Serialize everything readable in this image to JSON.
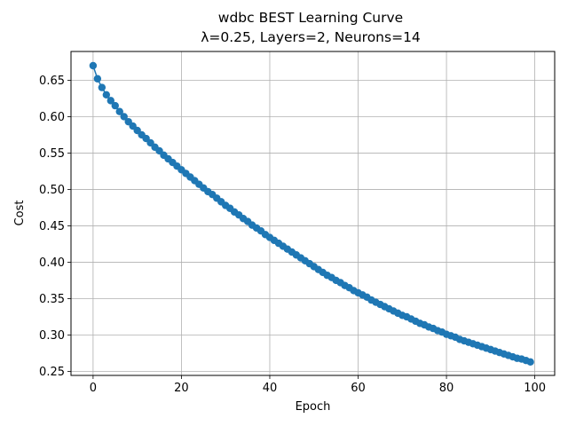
{
  "chart_data": {
    "type": "line",
    "title": "wdbc BEST Learning Curve",
    "subtitle": "λ=0.25, Layers=2, Neurons=14",
    "xlabel": "Epoch",
    "ylabel": "Cost",
    "xlim": [
      -5,
      104.5
    ],
    "ylim": [
      0.2445,
      0.6895
    ],
    "xticks": [
      0,
      20,
      40,
      60,
      80,
      100
    ],
    "xtick_labels": [
      "0",
      "20",
      "40",
      "60",
      "80",
      "100"
    ],
    "yticks": [
      0.25,
      0.3,
      0.35,
      0.4,
      0.45,
      0.5,
      0.55,
      0.6,
      0.65
    ],
    "ytick_labels": [
      "0.25",
      "0.30",
      "0.35",
      "0.40",
      "0.45",
      "0.50",
      "0.55",
      "0.60",
      "0.65"
    ],
    "grid": true,
    "marker": "circle",
    "colors": {
      "series": "#1f77b4",
      "grid": "#b0b0b0",
      "axes": "#000000"
    },
    "series": [
      {
        "x": [
          0,
          1,
          2,
          3,
          4,
          5,
          6,
          7,
          8,
          9,
          10,
          11,
          12,
          13,
          14,
          15,
          16,
          17,
          18,
          19,
          20,
          21,
          22,
          23,
          24,
          25,
          26,
          27,
          28,
          29,
          30,
          31,
          32,
          33,
          34,
          35,
          36,
          37,
          38,
          39,
          40,
          41,
          42,
          43,
          44,
          45,
          46,
          47,
          48,
          49,
          50,
          51,
          52,
          53,
          54,
          55,
          56,
          57,
          58,
          59,
          60,
          61,
          62,
          63,
          64,
          65,
          66,
          67,
          68,
          69,
          70,
          71,
          72,
          73,
          74,
          75,
          76,
          77,
          78,
          79,
          80,
          81,
          82,
          83,
          84,
          85,
          86,
          87,
          88,
          89,
          90,
          91,
          92,
          93,
          94,
          95,
          96,
          97,
          98,
          99
        ],
        "values": [
          0.67,
          0.652,
          0.64,
          0.63,
          0.622,
          0.615,
          0.607,
          0.6,
          0.593,
          0.587,
          0.581,
          0.575,
          0.57,
          0.564,
          0.558,
          0.553,
          0.547,
          0.542,
          0.537,
          0.532,
          0.527,
          0.522,
          0.517,
          0.512,
          0.507,
          0.502,
          0.497,
          0.493,
          0.488,
          0.483,
          0.478,
          0.474,
          0.469,
          0.465,
          0.46,
          0.456,
          0.451,
          0.447,
          0.443,
          0.438,
          0.434,
          0.43,
          0.426,
          0.422,
          0.418,
          0.414,
          0.41,
          0.406,
          0.402,
          0.398,
          0.394,
          0.39,
          0.386,
          0.382,
          0.379,
          0.375,
          0.372,
          0.368,
          0.365,
          0.361,
          0.358,
          0.355,
          0.352,
          0.348,
          0.345,
          0.342,
          0.339,
          0.336,
          0.333,
          0.33,
          0.327,
          0.325,
          0.322,
          0.319,
          0.316,
          0.314,
          0.311,
          0.309,
          0.306,
          0.304,
          0.301,
          0.299,
          0.297,
          0.294,
          0.292,
          0.29,
          0.288,
          0.286,
          0.284,
          0.282,
          0.28,
          0.278,
          0.276,
          0.274,
          0.272,
          0.27,
          0.268,
          0.267,
          0.265,
          0.263
        ]
      }
    ]
  }
}
